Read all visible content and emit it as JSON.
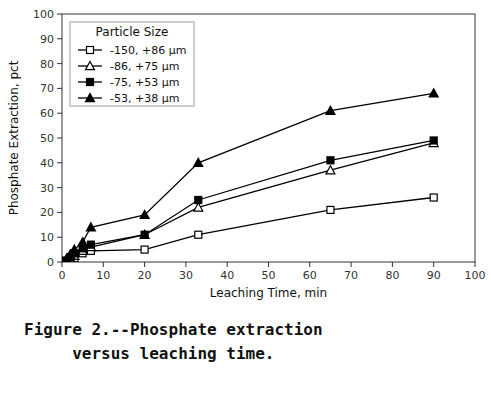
{
  "chart_data": {
    "type": "line",
    "xlabel": "Leaching Time, min",
    "ylabel": "Phosphate Extraction, pct",
    "legend_title": "Particle Size",
    "legend": "upper left",
    "grid": false,
    "annotations": [
      "Figure 2.--Phosphate extraction",
      "     versus leaching time."
    ],
    "x": [
      1,
      2,
      3,
      5,
      7,
      20,
      33,
      65,
      90
    ],
    "xlim": [
      0,
      100
    ],
    "ylim": [
      0,
      100
    ],
    "xticks": [
      0,
      10,
      20,
      30,
      40,
      50,
      60,
      70,
      80,
      90,
      100
    ],
    "yticks": [
      0,
      10,
      20,
      30,
      40,
      50,
      60,
      70,
      80,
      90,
      100
    ],
    "series": [
      {
        "name": "-150, +86 μm",
        "color": "black",
        "marker": "square-open",
        "values": [
          0.5,
          1.0,
          1.5,
          3.5,
          4.5,
          5.0,
          11,
          21,
          26
        ]
      },
      {
        "name": "-86, +75 μm",
        "color": "black",
        "marker": "triangle-open",
        "values": [
          0.5,
          1.5,
          2.5,
          4.5,
          6.0,
          11,
          22,
          37,
          48
        ]
      },
      {
        "name": "-75, +53 μm",
        "color": "black",
        "marker": "square",
        "values": [
          0.5,
          2.0,
          3.5,
          5.5,
          7.0,
          11,
          25,
          41,
          49
        ]
      },
      {
        "name": "-53, +38 μm",
        "color": "black",
        "marker": "triangle",
        "values": [
          1.0,
          3.0,
          5.0,
          8.0,
          14,
          19,
          40,
          61,
          68
        ]
      }
    ]
  }
}
